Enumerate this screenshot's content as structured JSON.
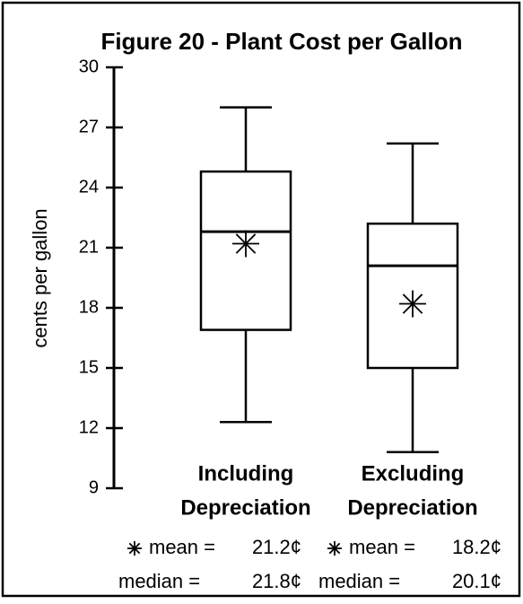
{
  "chart_data": {
    "type": "box",
    "title": "Figure 20 - Plant Cost per Gallon",
    "ylabel": "cents per gallon",
    "categories": [
      [
        "Including",
        "Depreciation"
      ],
      [
        "Excluding",
        "Depreciation"
      ]
    ],
    "series": [
      {
        "whislo": 12.3,
        "q1": 16.9,
        "med": 21.8,
        "q3": 24.8,
        "whishi": 28.0,
        "mean": 21.2
      },
      {
        "whislo": 10.8,
        "q1": 15.0,
        "med": 20.1,
        "q3": 22.2,
        "whishi": 26.2,
        "mean": 18.2
      }
    ],
    "legend": {
      "mean": "mean =",
      "median": "median ="
    },
    "mean_labels": [
      "21.2¢",
      "18.2¢"
    ],
    "median_labels": [
      "21.8¢",
      "20.1¢"
    ],
    "ylim": [
      9,
      30
    ],
    "yticks": [
      9,
      12,
      15,
      18,
      21,
      24,
      27,
      30
    ],
    "color": "#000000"
  }
}
